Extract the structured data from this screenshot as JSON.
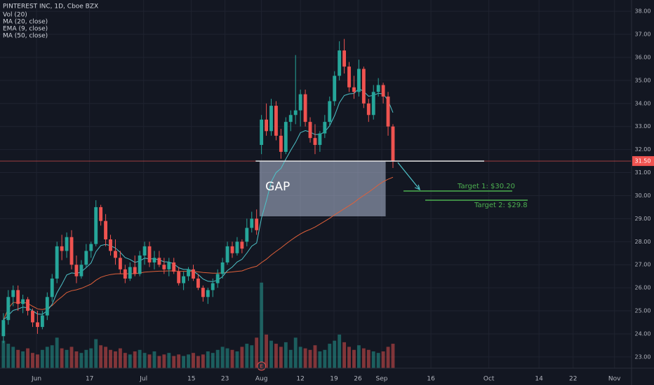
{
  "chart_data": {
    "type": "candlestick",
    "title": "PINTEREST INC, 1D, Cboe BZX",
    "indicators": [
      "Vol (20)",
      "MA (20, close)",
      "EMA (9, close)",
      "MA (50, close)"
    ],
    "up_color": "#26a69a",
    "down_color": "#ef5350",
    "grid": true,
    "xlim": [
      -0.7,
      129
    ],
    "xticks": [
      {
        "value": 6.8,
        "label": "Jun"
      },
      {
        "value": 17.7,
        "label": "17"
      },
      {
        "value": 28.8,
        "label": "Jul"
      },
      {
        "value": 38.6,
        "label": "15"
      },
      {
        "value": 45.5,
        "label": "23"
      },
      {
        "value": 53,
        "label": "Aug"
      },
      {
        "value": 61,
        "label": "12"
      },
      {
        "value": 67.9,
        "label": "19"
      },
      {
        "value": 72.8,
        "label": "26"
      },
      {
        "value": 77.7,
        "label": "Sep"
      },
      {
        "value": 87.8,
        "label": "16"
      },
      {
        "value": 99.7,
        "label": "Oct"
      },
      {
        "value": 110,
        "label": "14"
      },
      {
        "value": 117,
        "label": "22"
      },
      {
        "value": 125.5,
        "label": "Nov"
      }
    ],
    "ylim": [
      22.51,
      38.49
    ],
    "yticks": [
      {
        "value": 23,
        "label": "23.00"
      },
      {
        "value": 24,
        "label": "24.00"
      },
      {
        "value": 25,
        "label": "25.00"
      },
      {
        "value": 26,
        "label": "26.00"
      },
      {
        "value": 27,
        "label": "27.00"
      },
      {
        "value": 28,
        "label": "28.00"
      },
      {
        "value": 29,
        "label": "29.00"
      },
      {
        "value": 30,
        "label": "30.00"
      },
      {
        "value": 31,
        "label": "31.00"
      },
      {
        "value": 32,
        "label": "32.00"
      },
      {
        "value": 33,
        "label": "33.00"
      },
      {
        "value": 34,
        "label": "34.00"
      },
      {
        "value": 35,
        "label": "35.00"
      },
      {
        "value": 36,
        "label": "36.00"
      },
      {
        "value": 37,
        "label": "37.00"
      },
      {
        "value": 38,
        "label": "38.00"
      }
    ],
    "vlim": [
      0,
      120
    ],
    "ohlc": [
      [
        23.9,
        24.9,
        23.6,
        24.6
      ],
      [
        24.6,
        25.9,
        24.4,
        25.6
      ],
      [
        25.6,
        26.1,
        25.2,
        25.9
      ],
      [
        25.9,
        26.1,
        25.0,
        25.3
      ],
      [
        25.3,
        25.7,
        24.9,
        25.5
      ],
      [
        25.5,
        25.6,
        24.8,
        25.0
      ],
      [
        25.0,
        25.1,
        24.3,
        24.5
      ],
      [
        24.5,
        25.0,
        24.0,
        24.3
      ],
      [
        24.3,
        25.0,
        24.2,
        24.8
      ],
      [
        24.8,
        25.8,
        24.6,
        25.6
      ],
      [
        25.6,
        26.6,
        25.4,
        26.4
      ],
      [
        26.4,
        28.0,
        26.2,
        27.8
      ],
      [
        27.8,
        28.3,
        27.2,
        27.6
      ],
      [
        27.6,
        28.4,
        27.3,
        28.2
      ],
      [
        28.2,
        28.5,
        26.8,
        27.0
      ],
      [
        27.0,
        27.4,
        26.2,
        26.5
      ],
      [
        26.5,
        27.2,
        26.4,
        27.0
      ],
      [
        27.0,
        27.9,
        26.9,
        27.6
      ],
      [
        27.6,
        28.0,
        27.3,
        27.9
      ],
      [
        27.9,
        29.8,
        27.8,
        29.5
      ],
      [
        29.5,
        29.6,
        28.7,
        28.9
      ],
      [
        28.9,
        29.2,
        27.8,
        28.1
      ],
      [
        28.1,
        28.3,
        27.4,
        27.6
      ],
      [
        27.6,
        28.1,
        27.0,
        27.3
      ],
      [
        27.3,
        27.6,
        26.6,
        26.8
      ],
      [
        26.8,
        27.0,
        26.2,
        26.4
      ],
      [
        26.4,
        27.1,
        26.3,
        26.9
      ],
      [
        26.9,
        27.4,
        26.5,
        26.6
      ],
      [
        26.6,
        27.6,
        26.5,
        27.4
      ],
      [
        27.4,
        28.0,
        27.0,
        27.8
      ],
      [
        27.8,
        28.0,
        26.9,
        27.1
      ],
      [
        27.1,
        27.6,
        26.8,
        27.3
      ],
      [
        27.3,
        27.6,
        26.9,
        27.0
      ],
      [
        27.0,
        27.3,
        26.6,
        26.8
      ],
      [
        26.8,
        27.3,
        26.5,
        27.1
      ],
      [
        27.1,
        27.3,
        26.6,
        26.7
      ],
      [
        26.7,
        26.9,
        26.1,
        26.2
      ],
      [
        26.2,
        26.7,
        25.9,
        26.5
      ],
      [
        26.5,
        26.9,
        26.3,
        26.8
      ],
      [
        26.8,
        27.0,
        26.3,
        26.4
      ],
      [
        26.4,
        26.6,
        25.9,
        26.0
      ],
      [
        26.0,
        26.1,
        25.4,
        25.6
      ],
      [
        25.6,
        26.0,
        25.3,
        25.9
      ],
      [
        25.9,
        26.4,
        25.6,
        26.2
      ],
      [
        26.2,
        26.8,
        26.0,
        26.6
      ],
      [
        26.6,
        27.3,
        26.4,
        27.1
      ],
      [
        27.1,
        28.0,
        27.0,
        27.8
      ],
      [
        27.8,
        28.0,
        27.3,
        27.5
      ],
      [
        27.5,
        28.2,
        27.4,
        28.0
      ],
      [
        28.0,
        28.1,
        27.5,
        27.7
      ],
      [
        28.0,
        29.0,
        27.8,
        28.6
      ],
      [
        28.6,
        29.3,
        28.4,
        29.0
      ],
      [
        29.0,
        29.4,
        28.3,
        28.5
      ],
      [
        32.2,
        33.5,
        31.8,
        33.3
      ],
      [
        33.3,
        34.0,
        32.6,
        32.8
      ],
      [
        32.8,
        34.2,
        32.6,
        33.9
      ],
      [
        33.9,
        34.1,
        32.4,
        32.6
      ],
      [
        32.6,
        32.9,
        31.6,
        31.9
      ],
      [
        31.9,
        33.4,
        31.8,
        33.2
      ],
      [
        33.2,
        33.7,
        32.8,
        33.5
      ],
      [
        33.5,
        36.1,
        33.1,
        33.7
      ],
      [
        33.7,
        34.6,
        33.0,
        34.4
      ],
      [
        34.4,
        34.6,
        33.0,
        33.2
      ],
      [
        33.2,
        33.4,
        32.3,
        32.5
      ],
      [
        32.5,
        33.1,
        31.8,
        32.2
      ],
      [
        32.2,
        32.8,
        31.9,
        32.7
      ],
      [
        32.7,
        33.5,
        32.5,
        33.2
      ],
      [
        33.2,
        34.3,
        33.0,
        34.1
      ],
      [
        34.1,
        35.4,
        33.9,
        35.2
      ],
      [
        35.2,
        36.7,
        35.0,
        36.3
      ],
      [
        36.3,
        36.8,
        35.3,
        35.6
      ],
      [
        35.6,
        35.8,
        34.5,
        34.7
      ],
      [
        34.7,
        35.2,
        34.2,
        34.5
      ],
      [
        34.5,
        35.9,
        34.3,
        35.5
      ],
      [
        35.5,
        35.6,
        33.8,
        34.0
      ],
      [
        34.0,
        34.2,
        33.2,
        33.5
      ],
      [
        33.5,
        34.8,
        33.3,
        34.5
      ],
      [
        34.5,
        35.1,
        34.3,
        34.8
      ],
      [
        34.8,
        34.9,
        34.0,
        34.3
      ],
      [
        34.3,
        34.5,
        32.6,
        33.0
      ],
      [
        33.0,
        33.1,
        31.2,
        31.5
      ]
    ],
    "volume": [
      18,
      16,
      14,
      12,
      11,
      13,
      10,
      9,
      12,
      14,
      15,
      20,
      13,
      12,
      14,
      11,
      10,
      12,
      13,
      19,
      15,
      14,
      12,
      11,
      13,
      10,
      9,
      11,
      12,
      10,
      9,
      11,
      8,
      9,
      10,
      8,
      9,
      8,
      9,
      10,
      8,
      9,
      11,
      10,
      12,
      14,
      13,
      12,
      11,
      14,
      16,
      15,
      20,
      56,
      22,
      18,
      16,
      14,
      17,
      12,
      20,
      14,
      13,
      12,
      15,
      11,
      12,
      16,
      18,
      22,
      17,
      14,
      12,
      15,
      13,
      12,
      11,
      10,
      11,
      14,
      16
    ],
    "price_line": {
      "value": 31.5,
      "label": "31.50"
    },
    "gap": {
      "label": "GAP",
      "high": 31.5,
      "low": 29.1
    },
    "targets": [
      {
        "label": "Target 1: $30.20",
        "value": 30.2
      },
      {
        "label": "Target 2: $29.8",
        "value": 29.8
      }
    ],
    "earnings_marker": "E"
  }
}
